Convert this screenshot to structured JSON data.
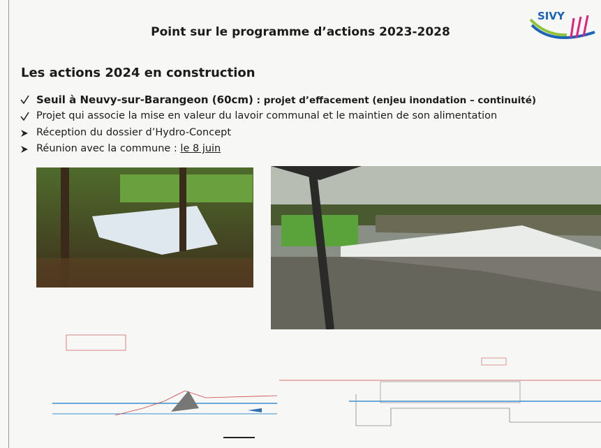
{
  "header": {
    "title": "Point sur le programme d’actions 2023-2028",
    "logo": "SIVY"
  },
  "section": {
    "heading": "Les actions 2024 en construction",
    "bullets": [
      {
        "lead": "Seuil à Neuvy-sur-Barangeon (60cm)",
        "text": " : projet d’effacement (enjeu inondation – continuité)"
      },
      {
        "text": "Projet qui associe la mise en valeur du lavoir communal et le maintien de son alimentation"
      },
      {
        "text": "Réception du dossier d’Hydro-Concept"
      },
      {
        "text": "Réunion avec la commune : ",
        "date": "le 8 juin"
      }
    ]
  }
}
